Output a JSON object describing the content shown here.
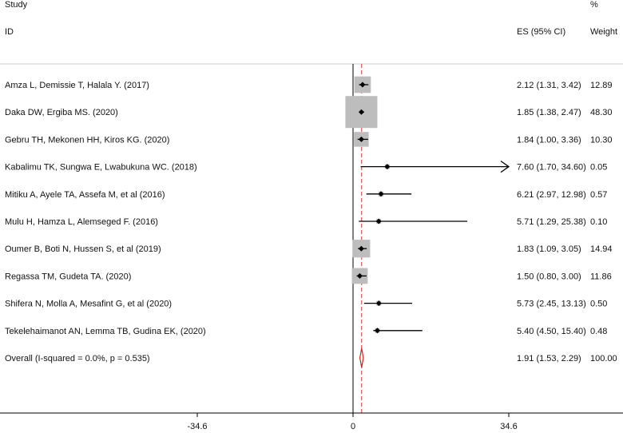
{
  "headers": {
    "study_line1": "Study",
    "study_line2": "ID",
    "es": "ES (95% CI)",
    "weight_line1": "%",
    "weight_line2": "Weight"
  },
  "chart_data": {
    "type": "forest",
    "xticks": [
      -34.6,
      0,
      34.6
    ],
    "xtick_labels": [
      "-34.6",
      "0",
      "34.6"
    ],
    "xlim": [
      -34.6,
      34.6
    ],
    "null_line": 0,
    "overall_line": 1.91,
    "studies": [
      {
        "label": "Amza L, Demissie T, Halala Y. (2017)",
        "es": 2.12,
        "lo": 1.31,
        "hi": 3.42,
        "es_text": "2.12 (1.31, 3.42)",
        "weight": 12.89,
        "weight_text": "12.89"
      },
      {
        "label": "Daka DW, Ergiba MS.  (2020)",
        "es": 1.85,
        "lo": 1.38,
        "hi": 2.47,
        "es_text": "1.85 (1.38, 2.47)",
        "weight": 48.3,
        "weight_text": "48.30"
      },
      {
        "label": "Gebru TH, Mekonen HH, Kiros KG. (2020)",
        "es": 1.84,
        "lo": 1.0,
        "hi": 3.36,
        "es_text": "1.84 (1.00, 3.36)",
        "weight": 10.3,
        "weight_text": "10.30"
      },
      {
        "label": "Kabalimu TK, Sungwa E, Lwabukuna WC. (2018)",
        "es": 7.6,
        "lo": 1.7,
        "hi": 34.6,
        "es_text": "7.60 (1.70, 34.60)",
        "weight": 0.05,
        "weight_text": "0.05"
      },
      {
        "label": "Mitiku A, Ayele TA, Assefa M, et al (2016)",
        "es": 6.21,
        "lo": 2.97,
        "hi": 12.98,
        "es_text": "6.21 (2.97, 12.98)",
        "weight": 0.57,
        "weight_text": "0.57"
      },
      {
        "label": "Mulu H, Hamza L, Alemseged F. (2016)",
        "es": 5.71,
        "lo": 1.29,
        "hi": 25.38,
        "es_text": "5.71 (1.29, 25.38)",
        "weight": 0.1,
        "weight_text": "0.10"
      },
      {
        "label": "Oumer B, Boti N, Hussen S, et al (2019)",
        "es": 1.83,
        "lo": 1.09,
        "hi": 3.05,
        "es_text": "1.83 (1.09, 3.05)",
        "weight": 14.94,
        "weight_text": "14.94"
      },
      {
        "label": "Regassa TM, Gudeta TA.  (2020)",
        "es": 1.5,
        "lo": 0.8,
        "hi": 3.0,
        "es_text": "1.50 (0.80, 3.00)",
        "weight": 11.86,
        "weight_text": "11.86"
      },
      {
        "label": "Shifera N, Molla A, Mesafint G, et al (2020)",
        "es": 5.73,
        "lo": 2.45,
        "hi": 13.13,
        "es_text": "5.73 (2.45, 13.13)",
        "weight": 0.5,
        "weight_text": "0.50"
      },
      {
        "label": "Tekelehaimanot AN, Lemma TB, Gudina EK, (2020)",
        "es": 5.4,
        "lo": 4.5,
        "hi": 15.4,
        "es_text": "5.40 (4.50, 15.40)",
        "weight": 0.48,
        "weight_text": "0.48"
      }
    ],
    "overall": {
      "label": "Overall  (I-squared = 0.0%, p = 0.535)",
      "es": 1.91,
      "lo": 1.53,
      "hi": 2.29,
      "es_text": "1.91 (1.53, 2.29)",
      "weight_text": "100.00"
    },
    "colors": {
      "box": "#bdbdbd",
      "line": "#000000",
      "diamond": "#d62020",
      "overall_line": "#c0392b",
      "rule": "#cccccc"
    }
  }
}
